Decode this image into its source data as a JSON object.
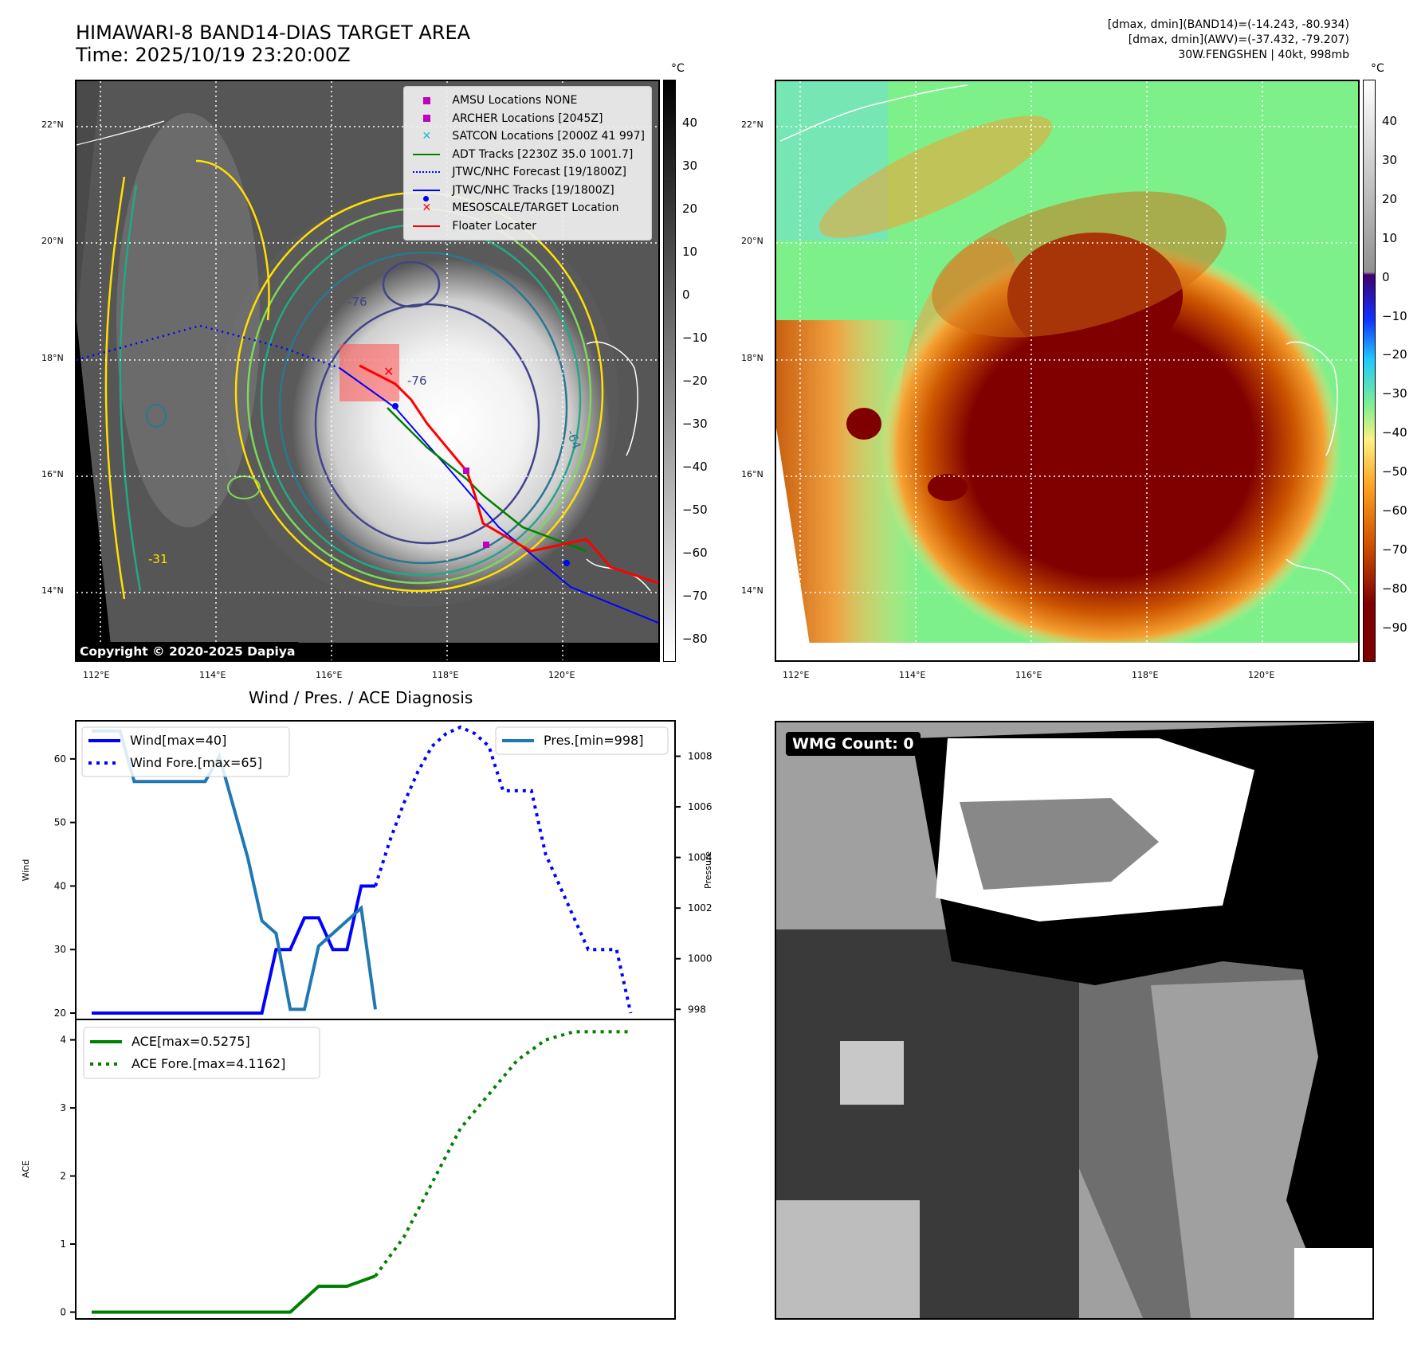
{
  "header": {
    "title_line1": "HIMAWARI-8 BAND14-DIAS TARGET AREA",
    "title_line2": "Time: 2025/10/19 23:20:00Z",
    "info_line1": "[dmax, dmin](BAND14)=(-14.243, -80.934)",
    "info_line2": "[dmax, dmin](AWV)=(-37.432, -79.207)",
    "info_line3": "30W.FENGSHEN | 40kt, 998mb"
  },
  "ir_map": {
    "lat_ticks": [
      "22°N",
      "20°N",
      "18°N",
      "16°N",
      "14°N"
    ],
    "lon_ticks": [
      "112°E",
      "114°E",
      "116°E",
      "118°E",
      "120°E"
    ],
    "contour_labels": [
      "-76",
      "-76",
      "-64",
      "-31"
    ],
    "colorbar_unit": "°C",
    "colorbar_ticks": [
      "40",
      "30",
      "20",
      "10",
      "0",
      "−10",
      "−20",
      "−30",
      "−40",
      "−50",
      "−60",
      "−70",
      "−80"
    ],
    "copyright": "Copyright © 2020-2025 Dapiya",
    "legend": [
      {
        "label": "AMSU Locations NONE",
        "symbol": "square",
        "color": "#c000c0"
      },
      {
        "label": "ARCHER Locations [2045Z]",
        "symbol": "square",
        "color": "#c000c0"
      },
      {
        "label": "SATCON Locations [2000Z 41 997]",
        "symbol": "x",
        "color": "#17becf"
      },
      {
        "label": "ADT Tracks [2230Z 35.0 1001.7]",
        "symbol": "line",
        "color": "#008000"
      },
      {
        "label": "JTWC/NHC Forecast [19/1800Z]",
        "symbol": "dotted",
        "color": "#0000ff"
      },
      {
        "label": "JTWC/NHC Tracks [19/1800Z]",
        "symbol": "line-dot",
        "color": "#0000ff"
      },
      {
        "label": "MESOSCALE/TARGET Location",
        "symbol": "x",
        "color": "#ff0000"
      },
      {
        "label": "Floater Locater",
        "symbol": "line",
        "color": "#ff0000"
      }
    ]
  },
  "awv_map": {
    "lat_ticks": [
      "22°N",
      "20°N",
      "18°N",
      "16°N",
      "14°N"
    ],
    "lon_ticks": [
      "112°E",
      "114°E",
      "116°E",
      "118°E",
      "120°E"
    ],
    "colorbar_unit": "°C",
    "colorbar_ticks": [
      "40",
      "30",
      "20",
      "10",
      "0",
      "−10",
      "−20",
      "−30",
      "−40",
      "−50",
      "−60",
      "−70",
      "−80",
      "−90"
    ]
  },
  "wmg": {
    "label": "WMG Count: 0"
  },
  "diagnosis_title": "Wind / Pres. / ACE Diagnosis",
  "chart_data": [
    {
      "type": "line",
      "title": "Wind / Pres. / ACE Diagnosis",
      "ylabel": "Wind",
      "ylabel_right": "Pressure",
      "ylim": [
        19,
        66
      ],
      "ylim_right": [
        997.6,
        1009.4
      ],
      "yticks": [
        "20",
        "30",
        "40",
        "50",
        "60"
      ],
      "yticks_right": [
        "998",
        "1000",
        "1002",
        "1004",
        "1006",
        "1008"
      ],
      "x": [
        0,
        1,
        2,
        3,
        4,
        5,
        6,
        7,
        8,
        9,
        10,
        11,
        12,
        13,
        14,
        15,
        16,
        17,
        18,
        19,
        20,
        21,
        22,
        23,
        24,
        25,
        26,
        27,
        28,
        29,
        30,
        31,
        32,
        33,
        34,
        35,
        36,
        37,
        38,
        39,
        40
      ],
      "series": [
        {
          "name": "Wind[max=40]",
          "style": "solid",
          "color": "#0000ff",
          "axis": "left",
          "x": [
            0,
            12,
            13,
            14,
            15,
            16,
            17,
            18,
            19,
            20
          ],
          "values": [
            20,
            20,
            30,
            30,
            35,
            35,
            30,
            30,
            40,
            40
          ]
        },
        {
          "name": "Wind Fore.[max=65]",
          "style": "dotted",
          "color": "#0000ff",
          "axis": "left",
          "x": [
            20,
            21,
            22,
            23,
            24,
            25,
            26,
            27,
            28,
            29,
            30,
            31,
            32,
            33,
            34,
            35,
            36,
            37,
            38
          ],
          "values": [
            40,
            47,
            53,
            58,
            62,
            64,
            65,
            64,
            62,
            55,
            55,
            55,
            45,
            40,
            35,
            30,
            30,
            30,
            20
          ]
        },
        {
          "name": "Pres.[min=998]",
          "style": "solid",
          "color": "#1f77b4",
          "axis": "right",
          "x": [
            0,
            1,
            2,
            3,
            4,
            5,
            6,
            7,
            8,
            9,
            10,
            11,
            12,
            13,
            14,
            15,
            16,
            17,
            18,
            19,
            20
          ],
          "values": [
            1009,
            1009,
            1009,
            1007,
            1007,
            1007,
            1007,
            1007,
            1007,
            1008,
            1006,
            1004,
            1001.5,
            1001,
            998,
            998,
            1000.5,
            1001,
            1001.5,
            1002,
            998
          ]
        }
      ],
      "legend_left": "upper-left",
      "legend_right": "upper-right"
    },
    {
      "type": "line",
      "ylabel": "ACE",
      "ylim": [
        -0.1,
        4.3
      ],
      "yticks": [
        "0",
        "1",
        "2",
        "3",
        "4"
      ],
      "series": [
        {
          "name": "ACE[max=0.5275]",
          "style": "solid",
          "color": "#008000",
          "x": [
            0,
            14,
            16,
            18,
            20
          ],
          "values": [
            0,
            0,
            0.38,
            0.38,
            0.53
          ]
        },
        {
          "name": "ACE Fore.[max=4.1162]",
          "style": "dotted",
          "color": "#008000",
          "x": [
            20,
            22,
            24,
            26,
            28,
            30,
            32,
            34,
            36,
            38
          ],
          "values": [
            0.53,
            1.1,
            1.9,
            2.7,
            3.2,
            3.7,
            4.0,
            4.12,
            4.12,
            4.12
          ]
        }
      ],
      "legend": "upper-left"
    }
  ]
}
